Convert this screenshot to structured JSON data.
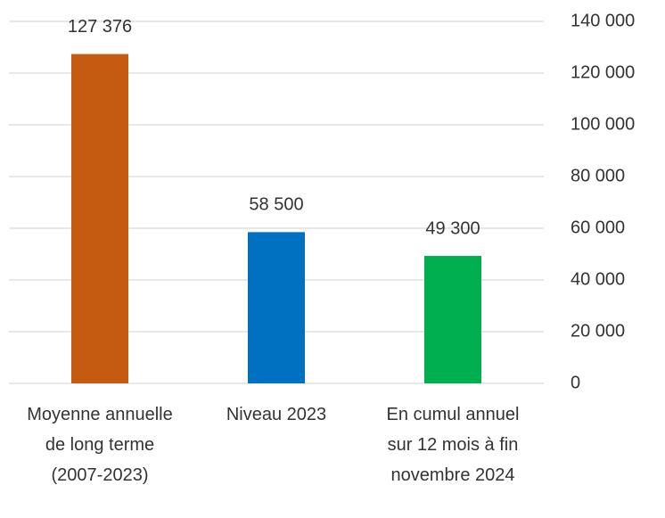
{
  "chart_data": {
    "type": "bar",
    "categories": [
      "Moyenne annuelle de long terme (2007-2023)",
      "Niveau 2023",
      "En cumul annuel sur 12 mois à fin novembre 2024"
    ],
    "values": [
      127376,
      58500,
      49300
    ],
    "value_labels": [
      "127 376",
      "58 500",
      "49 300"
    ],
    "colors": [
      "#c55a11",
      "#0070c0",
      "#00b050"
    ],
    "ylim": [
      0,
      140000
    ],
    "yticks": [
      0,
      {
        "value": 20000,
        "label": "20 000"
      },
      {
        "value": 40000,
        "label": "40 000"
      },
      {
        "value": 60000,
        "label": "60 000"
      },
      {
        "value": 80000,
        "label": "80 000"
      },
      {
        "value": 100000,
        "label": "100 000"
      },
      {
        "value": 120000,
        "label": "120 000"
      },
      {
        "value": 140000,
        "label": "140 000"
      }
    ],
    "y_axis_side": "right",
    "grid": true
  }
}
